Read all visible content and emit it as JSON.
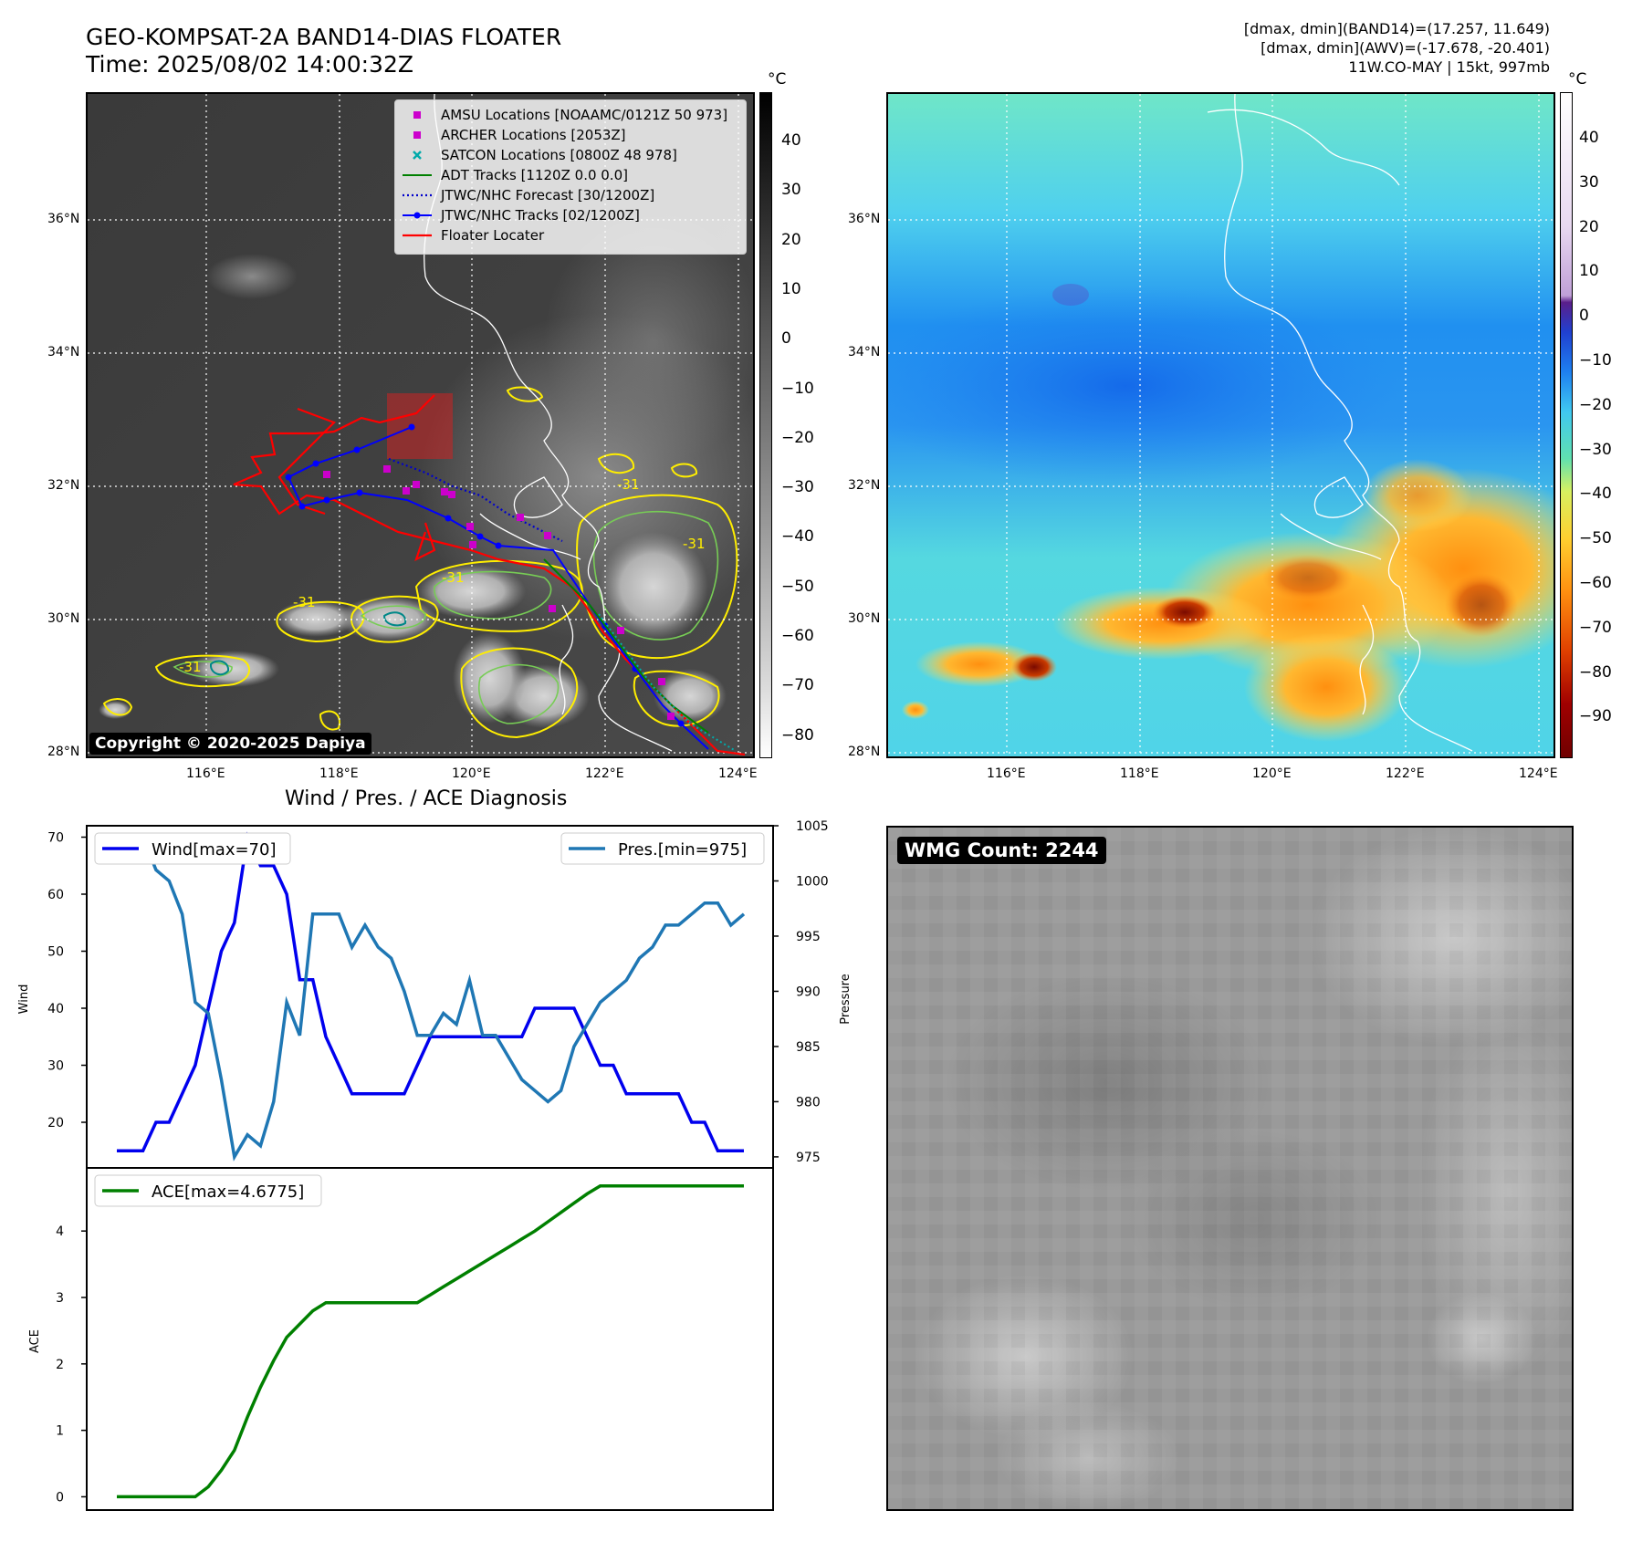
{
  "header": {
    "title_line1": "GEO-KOMPSAT-2A BAND14-DIAS FLOATER",
    "title_line2": "Time: 2025/08/02 14:00:32Z",
    "meta_line1": "[dmax, dmin](BAND14)=(17.257, 11.649)",
    "meta_line2": "[dmax, dmin](AWV)=(-17.678, -20.401)",
    "meta_line3": "11W.CO-MAY | 15kt, 997mb"
  },
  "map_left": {
    "lat_labels": [
      "36°N",
      "34°N",
      "32°N",
      "30°N",
      "28°N"
    ],
    "lon_labels": [
      "116°E",
      "118°E",
      "120°E",
      "122°E",
      "124°E"
    ],
    "copyright": "Copyright © 2020-2025 Dapiya",
    "contour_label": "-31",
    "legend": [
      {
        "label": "AMSU Locations [NOAAMC/0121Z 50 973]",
        "marker": "square",
        "color": "#cc00cc"
      },
      {
        "label": "ARCHER Locations [2053Z]",
        "marker": "square",
        "color": "#cc00cc"
      },
      {
        "label": "SATCON Locations [0800Z 48 978]",
        "marker": "x",
        "color": "#00aaaa"
      },
      {
        "label": "ADT Tracks [1120Z 0.0 0.0]",
        "marker": "line",
        "color": "#008000"
      },
      {
        "label": "JTWC/NHC Forecast [30/1200Z]",
        "marker": "dotted",
        "color": "#0000cc"
      },
      {
        "label": "JTWC/NHC Tracks [02/1200Z]",
        "marker": "line-dot",
        "color": "#0000ff"
      },
      {
        "label": "Floater Locater",
        "marker": "line",
        "color": "#ff0000"
      }
    ]
  },
  "colorbar_left": {
    "unit": "°C",
    "ticks": [
      "40",
      "30",
      "20",
      "10",
      "0",
      "−10",
      "−20",
      "−30",
      "−40",
      "−50",
      "−60",
      "−70",
      "−80"
    ]
  },
  "map_right": {
    "lat_labels": [
      "36°N",
      "34°N",
      "32°N",
      "30°N",
      "28°N"
    ],
    "lon_labels": [
      "116°E",
      "118°E",
      "120°E",
      "122°E",
      "124°E"
    ]
  },
  "colorbar_right": {
    "unit": "°C",
    "ticks": [
      "40",
      "30",
      "20",
      "10",
      "0",
      "−10",
      "−20",
      "−30",
      "−40",
      "−50",
      "−60",
      "−70",
      "−80",
      "−90"
    ]
  },
  "wmg": {
    "badge": "WMG Count: 2244"
  },
  "diagnosis": {
    "title": "Wind / Pres. / ACE Diagnosis",
    "wind_ylabel": "Wind",
    "pres_ylabel": "Pressure",
    "ace_ylabel": "ACE",
    "wind_legend": "Wind[max=70]",
    "pres_legend": "Pres.[min=975]",
    "ace_legend": "ACE[max=4.6775]",
    "wind_ticks": [
      "70",
      "60",
      "50",
      "40",
      "30",
      "20"
    ],
    "pres_ticks": [
      "1005",
      "1000",
      "995",
      "990",
      "985",
      "980",
      "975"
    ],
    "ace_ticks": [
      "4",
      "3",
      "2",
      "1",
      "0"
    ]
  },
  "colors": {
    "wind": "#0000ee",
    "pressure": "#1f77b4",
    "ace": "#008000",
    "track_red": "#ff0000",
    "contour_yellow": "#ffee00",
    "contour_green": "#77cc55"
  },
  "chart_data": [
    {
      "type": "line",
      "title": "Wind / Pres. / ACE Diagnosis",
      "ylabel": "Wind",
      "ylim": [
        12,
        72
      ],
      "series": [
        {
          "name": "Wind[max=70]",
          "values": [
            15,
            15,
            15,
            20,
            20,
            25,
            30,
            40,
            50,
            55,
            70,
            65,
            65,
            60,
            45,
            45,
            35,
            30,
            25,
            25,
            25,
            25,
            25,
            30,
            35,
            35,
            35,
            35,
            35,
            35,
            35,
            35,
            40,
            40,
            40,
            40,
            35,
            30,
            30,
            25,
            25,
            25,
            25,
            25,
            20,
            20,
            15,
            15,
            15
          ]
        }
      ]
    },
    {
      "type": "line",
      "ylabel": "Pressure",
      "ylim": [
        974,
        1005
      ],
      "series": [
        {
          "name": "Pres.[min=975]",
          "values": [
            1004,
            1004,
            1004,
            1001,
            1000,
            997,
            989,
            988,
            982,
            975,
            977,
            976,
            980,
            989,
            986,
            997,
            997,
            997,
            994,
            996,
            994,
            993,
            990,
            986,
            986,
            988,
            987,
            991,
            986,
            986,
            984,
            982,
            981,
            980,
            981,
            985,
            987,
            989,
            990,
            991,
            993,
            994,
            996,
            996,
            997,
            998,
            998,
            996,
            997
          ]
        }
      ]
    },
    {
      "type": "line",
      "ylabel": "ACE",
      "ylim": [
        -0.2,
        4.95
      ],
      "series": [
        {
          "name": "ACE[max=4.6775]",
          "values": [
            0,
            0,
            0,
            0,
            0,
            0,
            0,
            0.15,
            0.4,
            0.7,
            1.2,
            1.65,
            2.05,
            2.4,
            2.6,
            2.8,
            2.92,
            2.92,
            2.92,
            2.92,
            2.92,
            2.92,
            2.92,
            2.92,
            3.04,
            3.16,
            3.28,
            3.4,
            3.52,
            3.64,
            3.76,
            3.88,
            4.0,
            4.14,
            4.28,
            4.42,
            4.56,
            4.6775,
            4.6775,
            4.6775,
            4.6775,
            4.6775,
            4.6775,
            4.6775,
            4.6775,
            4.6775,
            4.6775,
            4.6775,
            4.6775
          ]
        }
      ]
    }
  ]
}
